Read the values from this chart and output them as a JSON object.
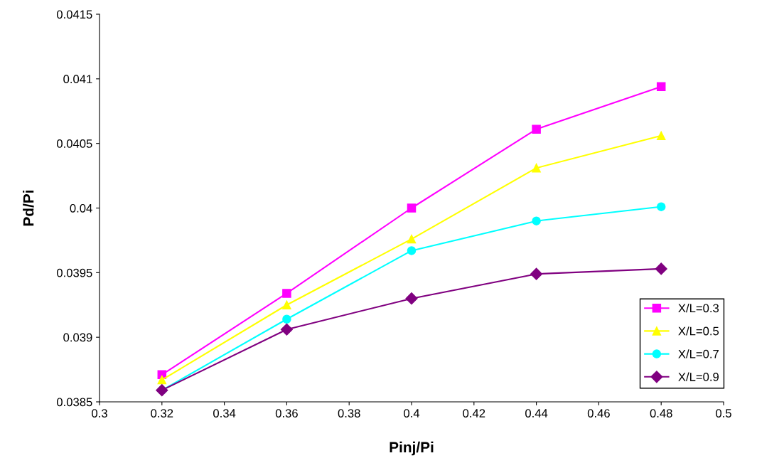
{
  "chart_data": {
    "type": "line",
    "xlabel": "Pinj/Pi",
    "ylabel": "Pd/Pi",
    "x": [
      0.32,
      0.36,
      0.4,
      0.44,
      0.48
    ],
    "series": [
      {
        "name": "X/L=0.3",
        "color": "#ff00ff",
        "marker": "square",
        "values": [
          0.03871,
          0.03934,
          0.04,
          0.04061,
          0.04094
        ]
      },
      {
        "name": "X/L=0.5",
        "color": "#ffff00",
        "marker": "triangle",
        "values": [
          0.03867,
          0.03925,
          0.03976,
          0.04031,
          0.04056
        ]
      },
      {
        "name": "X/L=0.7",
        "color": "#00ffff",
        "marker": "circle",
        "values": [
          0.03859,
          0.03914,
          0.03967,
          0.0399,
          0.04001
        ]
      },
      {
        "name": "X/L=0.9",
        "color": "#800080",
        "marker": "diamond",
        "values": [
          0.03859,
          0.03906,
          0.0393,
          0.03949,
          0.03953
        ]
      }
    ],
    "xlim": [
      0.3,
      0.5
    ],
    "xticks": [
      0.3,
      0.32,
      0.34,
      0.36,
      0.38,
      0.4,
      0.42,
      0.44,
      0.46,
      0.48,
      0.5
    ],
    "ylim": [
      0.0385,
      0.0415
    ],
    "yticks": [
      0.0385,
      0.039,
      0.0395,
      0.04,
      0.0405,
      0.041,
      0.0415
    ],
    "grid": false,
    "legend": "bottom right",
    "line_style": "solid"
  }
}
